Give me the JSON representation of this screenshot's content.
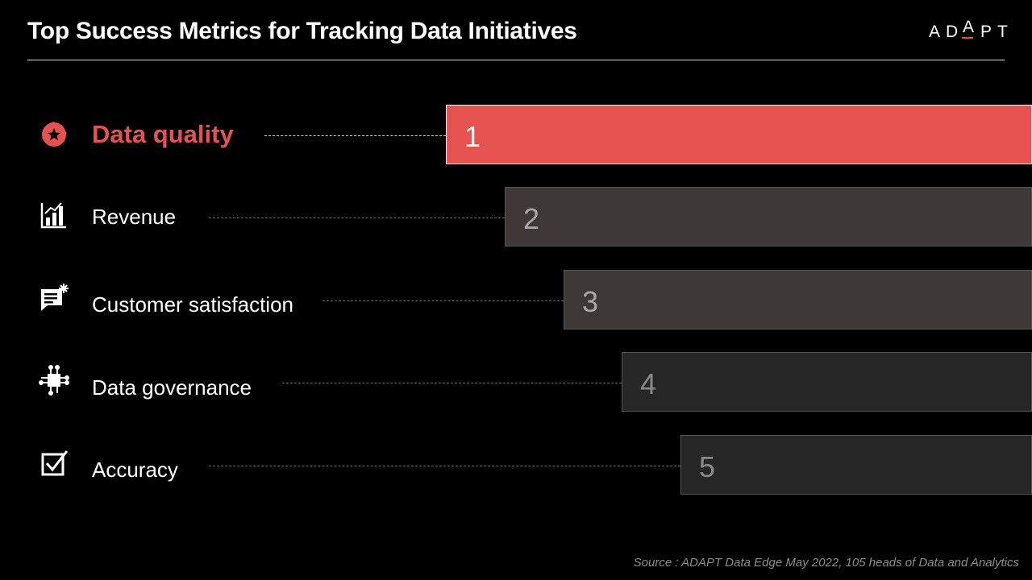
{
  "header": {
    "title": "Top Success Metrics for Tracking Data Initiatives",
    "logo_letters": [
      "A",
      "D",
      "A",
      "P",
      "T"
    ]
  },
  "colors": {
    "background": "#000000",
    "accent": "#e65250",
    "rank2_fill": "#3e3837",
    "rank3_fill": "#3e3837",
    "rank4_fill": "#262626",
    "rank5_fill": "#262626",
    "text": "#ffffff",
    "muted_text": "#8c8c8c"
  },
  "chart_data": {
    "type": "bar",
    "orientation": "horizontal",
    "title": "Top Success Metrics for Tracking Data Initiatives",
    "categories": [
      "Data quality",
      "Revenue",
      "Customer satisfaction",
      "Data governance",
      "Accuracy"
    ],
    "values": [
      1,
      2,
      3,
      4,
      5
    ],
    "bar_labels": [
      "1",
      "2",
      "3",
      "4",
      "5"
    ],
    "icons": [
      "star-badge-icon",
      "bar-chart-icon",
      "chat-sparkle-icon",
      "chip-icon",
      "checkbox-icon"
    ],
    "highlight_index": 0
  },
  "footer": {
    "source": "Source : ADAPT Data Edge May 2022, 105 heads of Data and Analytics"
  }
}
